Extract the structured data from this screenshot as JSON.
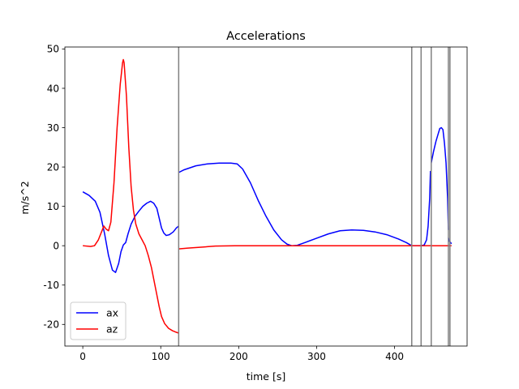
{
  "chart_data": {
    "type": "line",
    "title": "Accelerations",
    "xlabel": "time [s]",
    "ylabel": "m/s^2",
    "xlim": [
      -23,
      493
    ],
    "ylim": [
      -25.5,
      50.5
    ],
    "xticks": [
      0,
      100,
      200,
      300,
      400
    ],
    "yticks": [
      -20,
      -10,
      0,
      10,
      20,
      30,
      40,
      50
    ],
    "grid": false,
    "legend_position": "lower-left",
    "vlines": [
      123,
      422,
      434,
      447,
      469,
      471
    ],
    "vline_color": "#808080",
    "series": [
      {
        "name": "ax",
        "color": "#0000ff",
        "segments": [
          [
            [
              0,
              13.7
            ],
            [
              8,
              12.8
            ],
            [
              16,
              11.3
            ],
            [
              22,
              8.5
            ],
            [
              28,
              3
            ],
            [
              33,
              -2.5
            ],
            [
              38,
              -6.2
            ],
            [
              42,
              -6.8
            ],
            [
              46,
              -4.5
            ],
            [
              49,
              -1.5
            ],
            [
              52,
              0.2
            ],
            [
              55,
              0.8
            ],
            [
              58,
              3
            ],
            [
              62,
              5.5
            ],
            [
              67,
              7.5
            ],
            [
              72,
              8.8
            ],
            [
              77,
              10
            ],
            [
              82,
              10.8
            ],
            [
              87,
              11.3
            ],
            [
              91,
              10.8
            ],
            [
              95,
              9.5
            ],
            [
              98,
              7
            ],
            [
              101,
              4.5
            ],
            [
              104,
              3.2
            ],
            [
              107,
              2.6
            ],
            [
              111,
              2.8
            ],
            [
              116,
              3.5
            ],
            [
              120,
              4.5
            ],
            [
              123,
              5
            ]
          ],
          [
            [
              123,
              18.6
            ],
            [
              130,
              19.3
            ],
            [
              145,
              20.3
            ],
            [
              160,
              20.8
            ],
            [
              175,
              21
            ],
            [
              190,
              21
            ],
            [
              198,
              20.8
            ],
            [
              205,
              19.5
            ],
            [
              215,
              16
            ],
            [
              225,
              11.5
            ],
            [
              235,
              7.5
            ],
            [
              245,
              4
            ],
            [
              255,
              1.5
            ],
            [
              262,
              0.4
            ],
            [
              268,
              0
            ],
            [
              275,
              0.1
            ],
            [
              285,
              0.8
            ],
            [
              300,
              1.9
            ],
            [
              315,
              3
            ],
            [
              330,
              3.8
            ],
            [
              345,
              4
            ],
            [
              360,
              3.9
            ],
            [
              375,
              3.5
            ],
            [
              390,
              2.8
            ],
            [
              405,
              1.7
            ],
            [
              415,
              0.8
            ],
            [
              422,
              0
            ]
          ],
          [
            [
              422,
              0
            ],
            [
              434,
              0
            ]
          ],
          [
            [
              434,
              0
            ],
            [
              438,
              0.2
            ],
            [
              441,
              1.5
            ],
            [
              443,
              5
            ],
            [
              445,
              12
            ],
            [
              446,
              19
            ]
          ],
          [
            [
              447,
              21
            ],
            [
              450,
              24
            ],
            [
              453,
              26.5
            ],
            [
              456,
              28.5
            ],
            [
              458,
              29.8
            ],
            [
              460,
              30
            ],
            [
              462,
              29.5
            ],
            [
              464,
              26
            ],
            [
              466,
              21
            ],
            [
              468,
              12
            ],
            [
              469,
              4
            ]
          ],
          [
            [
              469,
              2
            ],
            [
              470,
              1
            ]
          ],
          [
            [
              471,
              1
            ],
            [
              473,
              0.5
            ]
          ]
        ]
      },
      {
        "name": "az",
        "color": "#ff0000",
        "segments": [
          [
            [
              0,
              0
            ],
            [
              10,
              -0.2
            ],
            [
              15,
              0
            ],
            [
              20,
              1.5
            ],
            [
              24,
              3.5
            ],
            [
              27,
              5
            ],
            [
              30,
              4.2
            ],
            [
              33,
              3.8
            ],
            [
              36,
              6
            ],
            [
              40,
              16
            ],
            [
              44,
              30
            ],
            [
              48,
              41
            ],
            [
              51,
              46.5
            ],
            [
              52,
              47.3
            ],
            [
              53,
              46.5
            ],
            [
              56,
              38
            ],
            [
              59,
              25
            ],
            [
              62,
              15
            ],
            [
              65,
              9
            ],
            [
              68,
              5.5
            ],
            [
              72,
              3
            ],
            [
              76,
              1.5
            ],
            [
              80,
              0
            ],
            [
              84,
              -2.5
            ],
            [
              88,
              -5.5
            ],
            [
              92,
              -9.5
            ],
            [
              95,
              -12.5
            ],
            [
              98,
              -15.5
            ],
            [
              101,
              -18
            ],
            [
              105,
              -19.8
            ],
            [
              110,
              -21
            ],
            [
              115,
              -21.6
            ],
            [
              120,
              -22
            ],
            [
              123,
              -22.2
            ]
          ],
          [
            [
              123,
              -0.8
            ],
            [
              135,
              -0.6
            ],
            [
              150,
              -0.4
            ],
            [
              170,
              -0.1
            ],
            [
              195,
              0
            ],
            [
              250,
              0
            ],
            [
              300,
              0
            ],
            [
              350,
              0
            ],
            [
              400,
              0
            ],
            [
              422,
              0
            ]
          ],
          [
            [
              422,
              0
            ],
            [
              434,
              0
            ]
          ],
          [
            [
              434,
              0
            ],
            [
              447,
              0
            ]
          ],
          [
            [
              447,
              0
            ],
            [
              469,
              0
            ]
          ],
          [
            [
              469,
              0
            ],
            [
              471,
              0
            ]
          ],
          [
            [
              471,
              0
            ],
            [
              473,
              0
            ]
          ]
        ]
      }
    ]
  }
}
